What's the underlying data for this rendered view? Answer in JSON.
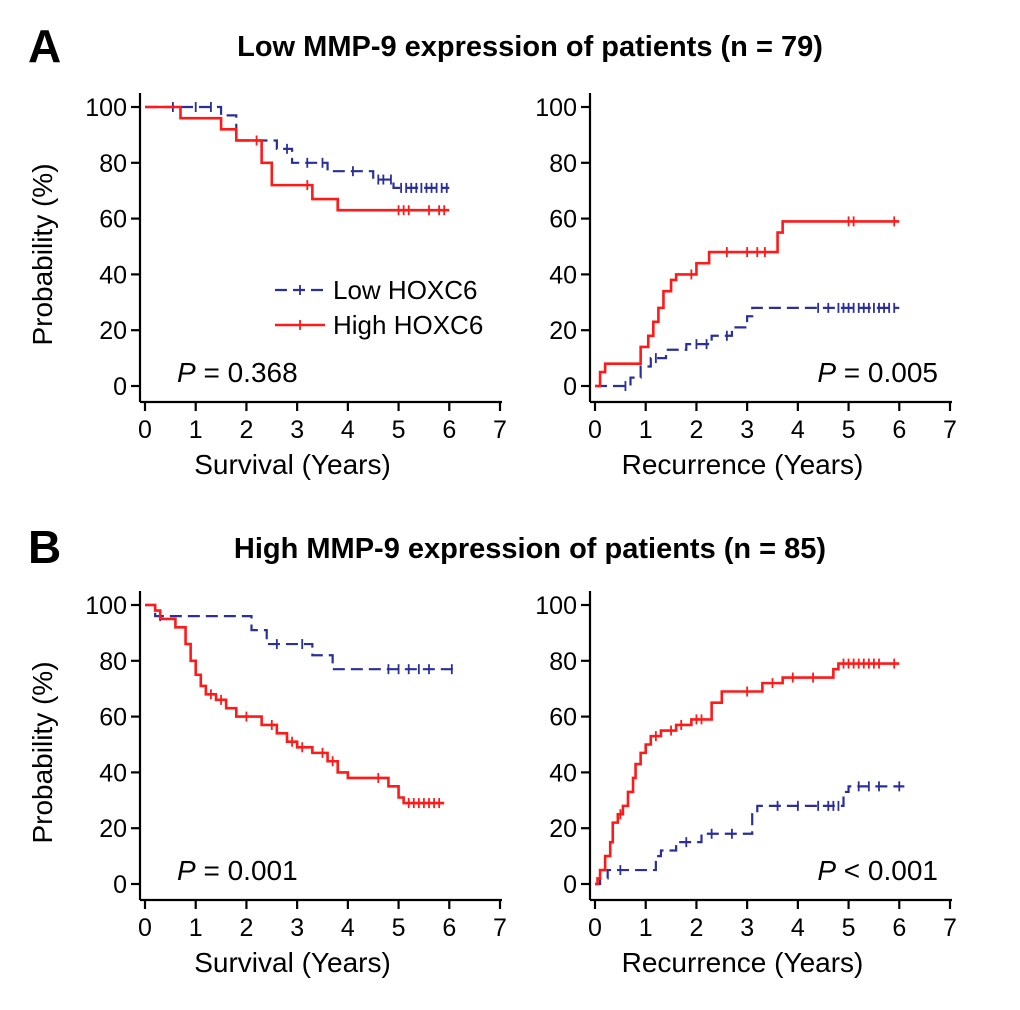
{
  "colors": {
    "low": "#2a2f9a",
    "high": "#ff1a1a",
    "axis": "#000000"
  },
  "panels": [
    {
      "letter": "A",
      "title": "Low MMP-9 expression of patients (n = 79)"
    },
    {
      "letter": "B",
      "title": "High MMP-9 expression of patients (n = 85)"
    }
  ],
  "legend": {
    "low": "Low HOXC6",
    "high": "High HOXC6"
  },
  "chart_data": [
    {
      "type": "line",
      "subtype": "kaplan-meier",
      "panel": "A",
      "position": "left",
      "xlabel": "Survival (Years)",
      "ylabel": "Probability (%)",
      "xlim": [
        0,
        7
      ],
      "ylim": [
        0,
        100
      ],
      "xticks": [
        0,
        1,
        2,
        3,
        4,
        5,
        6,
        7
      ],
      "yticks": [
        0,
        20,
        40,
        60,
        80,
        100
      ],
      "p_prefix": "P",
      "p_text": " = 0.368",
      "p_align": "left",
      "show_legend": true,
      "series": [
        {
          "name": "Low HOXC6",
          "style": "dashed",
          "steps": [
            [
              0,
              100
            ],
            [
              1.5,
              97
            ],
            [
              1.8,
              88
            ],
            [
              2.6,
              85
            ],
            [
              2.9,
              80
            ],
            [
              3.6,
              77
            ],
            [
              4.5,
              74
            ],
            [
              4.9,
              71
            ],
            [
              6,
              71
            ]
          ],
          "censors": [
            0.55,
            1.0,
            1.3,
            2.8,
            3.2,
            3.5,
            4.1,
            4.6,
            4.7,
            4.85,
            5.05,
            5.15,
            5.25,
            5.35,
            5.45,
            5.55,
            5.65,
            5.75,
            5.85,
            5.95
          ]
        },
        {
          "name": "High HOXC6",
          "style": "solid",
          "steps": [
            [
              0,
              100
            ],
            [
              0.7,
              96
            ],
            [
              1.5,
              92
            ],
            [
              1.8,
              88
            ],
            [
              2.3,
              80
            ],
            [
              2.5,
              72
            ],
            [
              3.3,
              67
            ],
            [
              3.8,
              63
            ],
            [
              6,
              63
            ]
          ],
          "censors": [
            2.2,
            3.2,
            5.0,
            5.1,
            5.2,
            5.6,
            5.8,
            5.9
          ]
        }
      ]
    },
    {
      "type": "line",
      "subtype": "kaplan-meier",
      "panel": "A",
      "position": "right",
      "xlabel": "Recurrence (Years)",
      "ylabel": "",
      "xlim": [
        0,
        7
      ],
      "ylim": [
        0,
        100
      ],
      "xticks": [
        0,
        1,
        2,
        3,
        4,
        5,
        6,
        7
      ],
      "yticks": [
        0,
        20,
        40,
        60,
        80,
        100
      ],
      "p_prefix": "P",
      "p_text": " = 0.005",
      "p_align": "right",
      "show_legend": false,
      "series": [
        {
          "name": "Low HOXC6",
          "style": "dashed",
          "steps": [
            [
              0,
              0
            ],
            [
              0.7,
              3
            ],
            [
              0.9,
              7
            ],
            [
              1.1,
              10
            ],
            [
              1.4,
              13
            ],
            [
              1.8,
              15
            ],
            [
              2.3,
              18
            ],
            [
              2.7,
              21
            ],
            [
              3.0,
              25
            ],
            [
              3.1,
              28
            ],
            [
              6,
              28
            ]
          ],
          "censors": [
            0.6,
            1.2,
            2.0,
            2.2,
            2.6,
            4.4,
            4.6,
            4.8,
            4.9,
            5.0,
            5.1,
            5.2,
            5.3,
            5.4,
            5.5,
            5.6,
            5.7,
            5.8,
            5.9
          ]
        },
        {
          "name": "High HOXC6",
          "style": "solid",
          "steps": [
            [
              0,
              0
            ],
            [
              0.1,
              5
            ],
            [
              0.2,
              8
            ],
            [
              0.9,
              14
            ],
            [
              1.05,
              18
            ],
            [
              1.15,
              23
            ],
            [
              1.25,
              28
            ],
            [
              1.35,
              34
            ],
            [
              1.5,
              38
            ],
            [
              1.6,
              40
            ],
            [
              2.0,
              44
            ],
            [
              2.25,
              48
            ],
            [
              3.6,
              55
            ],
            [
              3.7,
              59
            ],
            [
              6,
              59
            ]
          ],
          "censors": [
            1.9,
            2.6,
            3.0,
            3.2,
            3.35,
            5.0,
            5.1,
            5.9
          ]
        }
      ]
    },
    {
      "type": "line",
      "subtype": "kaplan-meier",
      "panel": "B",
      "position": "left",
      "xlabel": "Survival (Years)",
      "ylabel": "Probability (%)",
      "xlim": [
        0,
        7
      ],
      "ylim": [
        0,
        100
      ],
      "xticks": [
        0,
        1,
        2,
        3,
        4,
        5,
        6,
        7
      ],
      "yticks": [
        0,
        20,
        40,
        60,
        80,
        100
      ],
      "p_prefix": "P",
      "p_text": " = 0.001",
      "p_align": "left",
      "show_legend": false,
      "series": [
        {
          "name": "Low HOXC6",
          "style": "dashed",
          "steps": [
            [
              0,
              100
            ],
            [
              0.2,
              96
            ],
            [
              2.1,
              91
            ],
            [
              2.4,
              86
            ],
            [
              3.3,
              82
            ],
            [
              3.7,
              77
            ],
            [
              6.1,
              77
            ]
          ],
          "censors": [
            0.3,
            2.6,
            3.1,
            4.8,
            5.0,
            5.2,
            5.4,
            5.6,
            6.05
          ]
        },
        {
          "name": "High HOXC6",
          "style": "solid",
          "steps": [
            [
              0,
              100
            ],
            [
              0.2,
              98
            ],
            [
              0.3,
              95
            ],
            [
              0.6,
              92
            ],
            [
              0.8,
              86
            ],
            [
              0.9,
              80
            ],
            [
              1.0,
              75
            ],
            [
              1.1,
              71
            ],
            [
              1.2,
              68
            ],
            [
              1.4,
              66
            ],
            [
              1.6,
              63
            ],
            [
              1.8,
              60
            ],
            [
              2.3,
              57
            ],
            [
              2.6,
              54
            ],
            [
              2.8,
              51
            ],
            [
              3.0,
              49
            ],
            [
              3.3,
              47
            ],
            [
              3.6,
              44
            ],
            [
              3.8,
              40
            ],
            [
              4.0,
              38
            ],
            [
              4.8,
              35
            ],
            [
              5.0,
              31
            ],
            [
              5.1,
              29
            ],
            [
              5.9,
              29
            ]
          ],
          "censors": [
            1.3,
            1.5,
            2.0,
            2.5,
            2.9,
            3.1,
            3.5,
            3.7,
            4.6,
            5.2,
            5.3,
            5.4,
            5.5,
            5.6,
            5.7,
            5.8
          ]
        }
      ]
    },
    {
      "type": "line",
      "subtype": "kaplan-meier",
      "panel": "B",
      "position": "right",
      "xlabel": "Recurrence (Years)",
      "ylabel": "",
      "xlim": [
        0,
        7
      ],
      "ylim": [
        0,
        100
      ],
      "xticks": [
        0,
        1,
        2,
        3,
        4,
        5,
        6,
        7
      ],
      "yticks": [
        0,
        20,
        40,
        60,
        80,
        100
      ],
      "p_prefix": "P",
      "p_text": " < 0.001",
      "p_align": "right",
      "show_legend": false,
      "series": [
        {
          "name": "Low HOXC6",
          "style": "dashed",
          "steps": [
            [
              0,
              0
            ],
            [
              0.1,
              2
            ],
            [
              0.25,
              5
            ],
            [
              1.2,
              10
            ],
            [
              1.3,
              12
            ],
            [
              1.6,
              15
            ],
            [
              2.1,
              18
            ],
            [
              3.1,
              25
            ],
            [
              3.2,
              28
            ],
            [
              4.9,
              33
            ],
            [
              5.0,
              35
            ],
            [
              6.1,
              35
            ]
          ],
          "censors": [
            0.5,
            1.8,
            2.3,
            2.7,
            3.6,
            4.0,
            4.4,
            4.6,
            4.7,
            4.8,
            5.2,
            5.4,
            5.6,
            6.0
          ]
        },
        {
          "name": "High HOXC6",
          "style": "solid",
          "steps": [
            [
              0,
              0
            ],
            [
              0.05,
              2
            ],
            [
              0.1,
              5
            ],
            [
              0.2,
              10
            ],
            [
              0.3,
              15
            ],
            [
              0.35,
              22
            ],
            [
              0.45,
              25
            ],
            [
              0.55,
              28
            ],
            [
              0.65,
              33
            ],
            [
              0.75,
              38
            ],
            [
              0.8,
              43
            ],
            [
              0.9,
              47
            ],
            [
              1.0,
              50
            ],
            [
              1.1,
              53
            ],
            [
              1.3,
              55
            ],
            [
              1.6,
              57
            ],
            [
              1.9,
              59
            ],
            [
              2.3,
              65
            ],
            [
              2.5,
              69
            ],
            [
              3.3,
              72
            ],
            [
              3.7,
              74
            ],
            [
              4.7,
              77
            ],
            [
              4.8,
              79
            ],
            [
              6,
              79
            ]
          ],
          "censors": [
            0.5,
            1.2,
            1.5,
            1.7,
            2.0,
            2.1,
            3.0,
            3.5,
            3.9,
            4.3,
            4.9,
            5.0,
            5.1,
            5.2,
            5.3,
            5.4,
            5.5,
            5.6,
            5.9
          ]
        }
      ]
    }
  ]
}
